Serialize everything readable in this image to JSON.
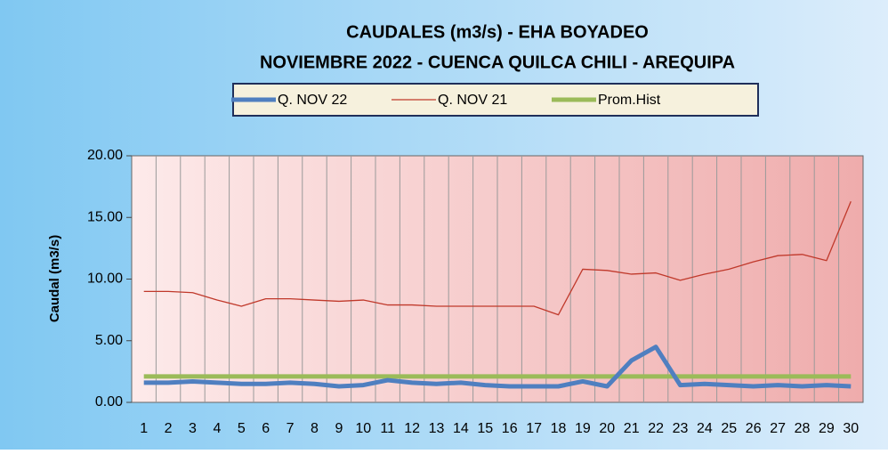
{
  "chart_data": {
    "type": "line",
    "title": "CAUDALES (m3/s) - EHA BOYADEO",
    "subtitle": "NOVIEMBRE 2022 -  CUENCA QUILCA CHILI - AREQUIPA",
    "y_label": "Caudal  (m3/s)",
    "categories": [
      "1",
      "2",
      "3",
      "4",
      "5",
      "6",
      "7",
      "8",
      "9",
      "10",
      "11",
      "12",
      "13",
      "14",
      "15",
      "16",
      "17",
      "18",
      "19",
      "20",
      "21",
      "22",
      "23",
      "24",
      "25",
      "26",
      "27",
      "28",
      "29",
      "30"
    ],
    "series": [
      {
        "name": "Q. NOV 22",
        "color": "#4f7fc0",
        "width": 5,
        "values": [
          1.6,
          1.6,
          1.7,
          1.6,
          1.5,
          1.5,
          1.6,
          1.5,
          1.3,
          1.4,
          1.8,
          1.6,
          1.5,
          1.6,
          1.4,
          1.3,
          1.3,
          1.3,
          1.7,
          1.3,
          3.4,
          4.5,
          1.4,
          1.5,
          1.4,
          1.3,
          1.4,
          1.3,
          1.4,
          1.3
        ]
      },
      {
        "name": "Q. NOV 21",
        "color": "#c0392b",
        "width": 1.3,
        "values": [
          9.0,
          9.0,
          8.9,
          8.3,
          7.8,
          8.4,
          8.4,
          8.3,
          8.2,
          8.3,
          7.9,
          7.9,
          7.8,
          7.8,
          7.8,
          7.8,
          7.8,
          7.1,
          10.8,
          10.7,
          10.4,
          10.5,
          9.9,
          10.4,
          10.8,
          11.4,
          11.9,
          12.0,
          11.5,
          16.3
        ]
      },
      {
        "name": "Prom.Hist",
        "color": "#9bbb59",
        "width": 5,
        "values": [
          2.1,
          2.1,
          2.1,
          2.1,
          2.1,
          2.1,
          2.1,
          2.1,
          2.1,
          2.1,
          2.1,
          2.1,
          2.1,
          2.1,
          2.1,
          2.1,
          2.1,
          2.1,
          2.1,
          2.1,
          2.1,
          2.1,
          2.1,
          2.1,
          2.1,
          2.1,
          2.1,
          2.1,
          2.1,
          2.1
        ]
      }
    ],
    "ylim": [
      0,
      20
    ],
    "yticks": [
      {
        "value": 0,
        "label": "0.00"
      },
      {
        "value": 5,
        "label": "5.00"
      },
      {
        "value": 10,
        "label": "10.00"
      },
      {
        "value": 15,
        "label": "15.00"
      },
      {
        "value": 20,
        "label": "20.00"
      }
    ],
    "legend": "top"
  }
}
